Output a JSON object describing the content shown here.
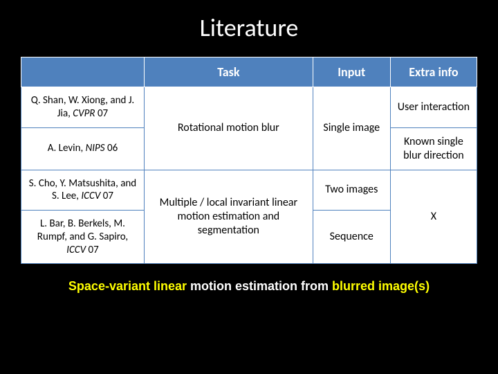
{
  "slide": {
    "title": "Literature",
    "background_color": "#000000",
    "title_color": "#ffffff",
    "title_fontsize": 36
  },
  "table": {
    "header_bg": "#4f81bd",
    "header_fg": "#ffffff",
    "cell_bg": "#ffffff",
    "border_color": "#4f81bd",
    "columns": {
      "ref": "",
      "task": "Task",
      "input": "Input",
      "extra": "Extra info"
    },
    "rows": {
      "r1_ref_a": "Q. Shan, W. Xiong, and J. Jia, ",
      "r1_ref_b": "CVPR",
      "r1_ref_c": " 07",
      "r1_task": "Rotational motion blur",
      "r12_input": "Single image",
      "r1_extra": "User interaction",
      "r2_ref_a": "A. Levin, ",
      "r2_ref_b": "NIPS",
      "r2_ref_c": " 06",
      "r2_extra": "Known single blur direction",
      "r3_ref_a": "S. Cho, Y. Matsushita, and S. Lee, ",
      "r3_ref_b": "ICCV",
      "r3_ref_c": " 07",
      "r34_task": "Multiple / local invariant linear motion estimation and segmentation",
      "r3_input": "Two images",
      "r34_extra": "X",
      "r4_ref_a": "L. Bar, B. Berkels, M. Rumpf, and G. Sapiro, ",
      "r4_ref_b": "ICCV",
      "r4_ref_c": " 07",
      "r4_input": "Sequence"
    }
  },
  "caption": {
    "p1": "Space-variant linear",
    "p2": " motion estimation from ",
    "p3": "blurred image(s)",
    "highlight_color": "#ffff00",
    "text_color": "#ffffff",
    "fontsize": 18
  }
}
